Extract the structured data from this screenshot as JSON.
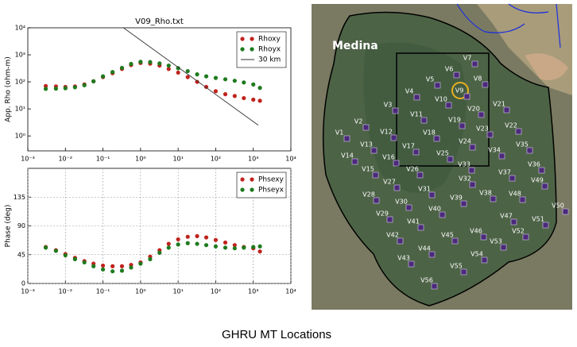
{
  "chart_data": [
    {
      "type": "scatter",
      "title": "V09_Rho.txt",
      "ylabel": "App. Rho (ohm-m)",
      "xlog": true,
      "ylog": true,
      "grid": false,
      "legend": "upper right",
      "xlim": [
        0.001,
        10000
      ],
      "ylim": [
        0.28,
        10000
      ],
      "xticks": [
        {
          "value": 0.001,
          "label": "10⁻³"
        },
        {
          "value": 0.01,
          "label": "10⁻²"
        },
        {
          "value": 0.1,
          "label": "10⁻¹"
        },
        {
          "value": 1,
          "label": "10⁰"
        },
        {
          "value": 10,
          "label": "10¹"
        },
        {
          "value": 100,
          "label": "10²"
        },
        {
          "value": 1000,
          "label": "10³"
        },
        {
          "value": 10000,
          "label": "10⁴"
        }
      ],
      "yticks": [
        {
          "value": 1,
          "label": "10⁰"
        },
        {
          "value": 10,
          "label": "10¹"
        },
        {
          "value": 100,
          "label": "10²"
        },
        {
          "value": 1000,
          "label": "10³"
        },
        {
          "value": 10000,
          "label": "10⁴"
        }
      ],
      "x": [
        0.003,
        0.0056,
        0.01,
        0.018,
        0.032,
        0.056,
        0.1,
        0.18,
        0.32,
        0.56,
        1,
        1.8,
        3.2,
        5.6,
        10,
        18,
        32,
        56,
        100,
        180,
        320,
        560,
        1000,
        1500
      ],
      "series": [
        {
          "name": "Rhoxy",
          "color": "#c0231e",
          "values": [
            70,
            68,
            65,
            68,
            80,
            105,
            150,
            210,
            300,
            420,
            500,
            470,
            400,
            300,
            220,
            150,
            100,
            65,
            45,
            35,
            30,
            25,
            22,
            20
          ]
        },
        {
          "name": "Rhoyx",
          "color": "#1e7a1e",
          "values": [
            55,
            56,
            58,
            63,
            75,
            105,
            160,
            230,
            330,
            460,
            550,
            540,
            480,
            400,
            320,
            250,
            190,
            160,
            140,
            125,
            110,
            95,
            80,
            60
          ]
        },
        {
          "name": "30 km",
          "color": "#333333",
          "x": [
            0.35,
            1350
          ],
          "values": [
            10000,
            2.5
          ]
        }
      ]
    },
    {
      "type": "scatter",
      "ylabel": "Phase (deg)",
      "xlog": true,
      "ylog": false,
      "grid": true,
      "legend": "upper right",
      "xlim": [
        0.001,
        10000
      ],
      "ylim": [
        0,
        180
      ],
      "xticks": [
        {
          "value": 0.001,
          "label": "10⁻³"
        },
        {
          "value": 0.01,
          "label": "10⁻²"
        },
        {
          "value": 0.1,
          "label": "10⁻¹"
        },
        {
          "value": 1,
          "label": "10⁰"
        },
        {
          "value": 10,
          "label": "10¹"
        },
        {
          "value": 100,
          "label": "10²"
        },
        {
          "value": 1000,
          "label": "10³"
        },
        {
          "value": 10000,
          "label": "10⁴"
        }
      ],
      "yticks": [
        0,
        45,
        90,
        135
      ],
      "x": [
        0.003,
        0.0056,
        0.01,
        0.018,
        0.032,
        0.056,
        0.1,
        0.18,
        0.32,
        0.56,
        1,
        1.8,
        3.2,
        5.6,
        10,
        18,
        32,
        56,
        100,
        180,
        320,
        560,
        1000,
        1500
      ],
      "series": [
        {
          "name": "Phsexy",
          "color": "#c0231e",
          "values": [
            57,
            52,
            46,
            40,
            35,
            31,
            28,
            27,
            27,
            29,
            33,
            42,
            52,
            62,
            69,
            73,
            74,
            72,
            68,
            64,
            60,
            57,
            55,
            50
          ]
        },
        {
          "name": "Phseyx",
          "color": "#1e7a1e",
          "values": [
            56,
            51,
            44,
            38,
            33,
            27,
            22,
            19,
            20,
            25,
            31,
            38,
            48,
            56,
            61,
            63,
            62,
            60,
            58,
            56,
            55,
            56,
            57,
            58
          ]
        }
      ]
    }
  ],
  "map": {
    "place_label": "Medina",
    "stations": [
      "V1",
      "V2",
      "V3",
      "V4",
      "V5",
      "V6",
      "V7",
      "V8",
      "V9",
      "V10",
      "V11",
      "V12",
      "V13",
      "V14",
      "V15",
      "V16",
      "V17",
      "V18",
      "V19",
      "V20",
      "V21",
      "V22",
      "V23",
      "V24",
      "V25",
      "V26",
      "V27",
      "V28",
      "V29",
      "V30",
      "V31",
      "V32",
      "V33",
      "V34",
      "V35",
      "V36",
      "V37",
      "V38",
      "V39",
      "V40",
      "V41",
      "V42",
      "V43",
      "V44",
      "V45",
      "V46",
      "V47",
      "V48",
      "V49",
      "V50",
      "V51",
      "V52",
      "V53",
      "V54",
      "V55",
      "V56"
    ]
  },
  "caption": "GHRU MT Locations"
}
